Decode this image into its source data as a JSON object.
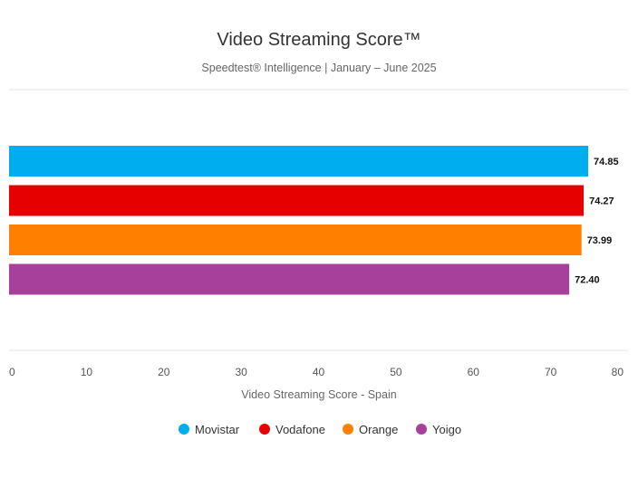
{
  "chart_data": {
    "type": "bar",
    "orientation": "horizontal",
    "title": "Video Streaming Score™",
    "subtitle": "Speedtest® Intelligence | January – June 2025",
    "xlabel": "Video Streaming Score - Spain",
    "ylabel": "",
    "xlim": [
      0,
      80
    ],
    "ticks": [
      0,
      10,
      20,
      30,
      40,
      50,
      60,
      70,
      80
    ],
    "grid": false,
    "legend_position": "bottom",
    "categories": [
      "Movistar",
      "Vodafone",
      "Orange",
      "Yoigo"
    ],
    "values": [
      74.85,
      74.27,
      73.99,
      72.4
    ],
    "value_labels": [
      "74.85",
      "74.27",
      "73.99",
      "72.40"
    ],
    "colors": [
      "#00AEEF",
      "#E60000",
      "#FF7F00",
      "#A6409B"
    ]
  }
}
